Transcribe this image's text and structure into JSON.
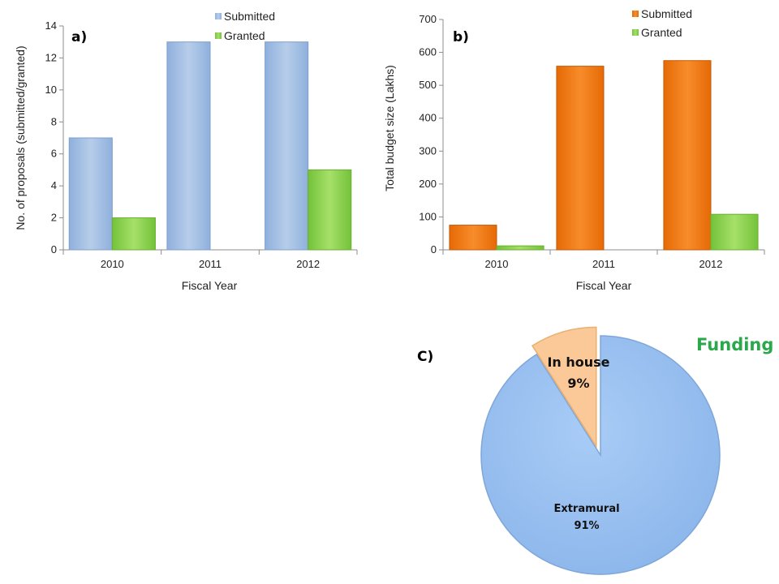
{
  "chart_data": [
    {
      "type": "bar",
      "panel_label": "a)",
      "categories": [
        "2010",
        "2011",
        "2012"
      ],
      "series": [
        {
          "name": "Submitted",
          "values": [
            7,
            13,
            13
          ]
        },
        {
          "name": "Granted",
          "values": [
            2,
            null,
            5
          ]
        }
      ],
      "xlabel": "Fiscal Year",
      "ylabel": "No. of proposals (submitted/granted)",
      "ylim": [
        0,
        14
      ],
      "yticks": [
        0,
        2,
        4,
        6,
        8,
        10,
        12,
        14
      ],
      "legend": "top-right",
      "grid": false
    },
    {
      "type": "bar",
      "panel_label": "b)",
      "categories": [
        "2010",
        "2011",
        "2012"
      ],
      "series": [
        {
          "name": "Submitted",
          "values": [
            75,
            558,
            575
          ]
        },
        {
          "name": "Granted",
          "values": [
            12,
            null,
            108
          ]
        }
      ],
      "xlabel": "Fiscal Year",
      "ylabel": "Total budget size (Lakhs)",
      "ylim": [
        0,
        700
      ],
      "yticks": [
        0,
        100,
        200,
        300,
        400,
        500,
        600,
        700
      ],
      "legend": "top-right",
      "grid": false
    },
    {
      "type": "pie",
      "panel_label": "C)",
      "title": "Funding",
      "slices": [
        {
          "label": "In house",
          "pct_label": "9%",
          "value": 9
        },
        {
          "label": "Extramural",
          "pct_label": "91%",
          "value": 91
        }
      ]
    }
  ],
  "colors": {
    "a_submitted": "#a3c0e3",
    "a_granted": "#8ed44f",
    "b_submitted": "#f07a12",
    "b_granted": "#8ed44f",
    "pie_extramural": "#98c0f0",
    "pie_inhouse": "#fbc898",
    "funding_title": "#2aa84a"
  }
}
